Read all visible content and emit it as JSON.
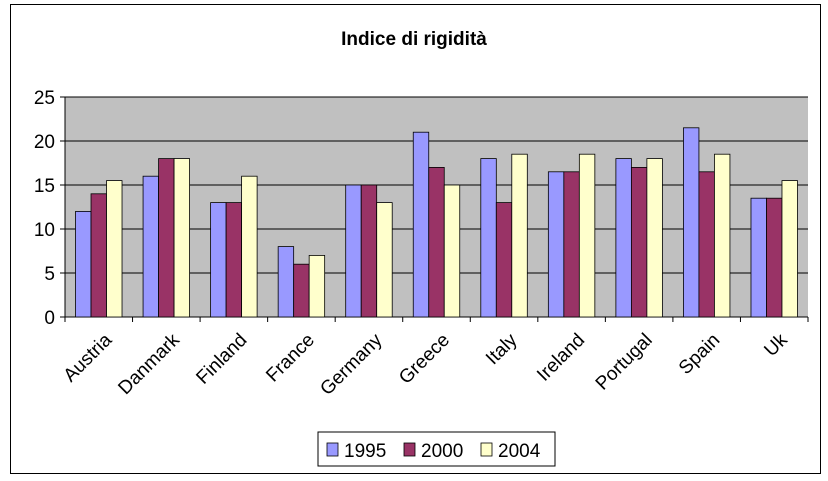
{
  "chart_data": {
    "type": "bar",
    "title": "Indice di rigidità",
    "xlabel": "",
    "ylabel": "",
    "ylim": [
      0,
      25
    ],
    "yticks": [
      "0",
      "5",
      "10",
      "15",
      "20",
      "25"
    ],
    "grid": true,
    "legend_position": "bottom",
    "plot_background": "#c0c0c0",
    "categories": [
      "Austria",
      "Danmark",
      "Finland",
      "France",
      "Germany",
      "Greece",
      "Italy",
      "Ireland",
      "Portugal",
      "Spain",
      "Uk"
    ],
    "series": [
      {
        "name": "1995",
        "color": "#9999ff",
        "values": [
          12,
          16,
          13,
          8,
          15,
          21,
          18,
          16.5,
          18,
          21.5,
          13.5
        ]
      },
      {
        "name": "2000",
        "color": "#993366",
        "values": [
          14,
          18,
          13,
          6,
          15,
          17,
          13,
          16.5,
          17,
          16.5,
          13.5
        ]
      },
      {
        "name": "2004",
        "color": "#ffffcc",
        "values": [
          15.5,
          18,
          16,
          7,
          13,
          15,
          18.5,
          18.5,
          18,
          18.5,
          15.5
        ]
      }
    ]
  }
}
